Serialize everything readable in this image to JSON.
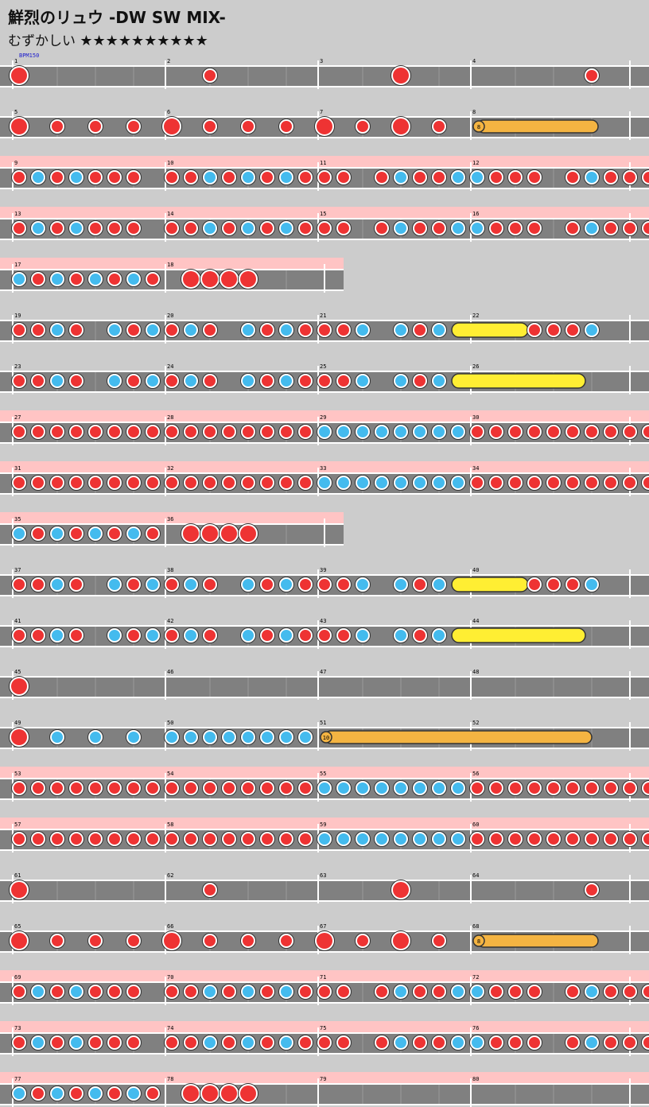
{
  "title": "鮮烈のリュウ -DW SW MIX-",
  "difficulty": {
    "label": "むずかしい",
    "stars": "★★★★★★★★★★",
    "level": 10
  },
  "bpm_label": "BPM150",
  "colors": {
    "don": "#ee3333",
    "ka": "#44bbee",
    "roll": "#f4b442",
    "big_roll": "#ffee33",
    "gogo": "#ffc4c4",
    "lane": "#808080"
  },
  "rows": [
    {
      "bars": [
        "1",
        "2",
        "3",
        "4"
      ],
      "gogo": false,
      "len": 4,
      "notes": "D.........d.........D.........d......."
    },
    {
      "bars": [
        "5",
        "6",
        "7",
        "8"
      ],
      "gogo": false,
      "len": 4,
      "notes": "D.d.d.d.D.d.d.d.D.d.D.d.Y8......."
    },
    {
      "bars": [
        "9",
        "10",
        "11",
        "12"
      ],
      "gogo": true,
      "len": 4,
      "notes": "dkdkddd.ddkdkdkddd.dkddkkddd.dkdddkdkkd"
    },
    {
      "bars": [
        "13",
        "14",
        "15",
        "16"
      ],
      "gogo": true,
      "len": 4,
      "notes": "dkdkddd.ddkdkdkddd.dkddkkddd.dkdddkdkkd"
    },
    {
      "bars": [
        "17",
        "18"
      ],
      "gogo": true,
      "len": 2,
      "notes": "kdkdkdkd.DDDD"
    },
    {
      "bars": [
        "19",
        "20",
        "21",
        "22"
      ],
      "gogo": false,
      "len": 4,
      "notes": "ddkd.kdkdkd.kdkdddk.kdkLLLLdddk"
    },
    {
      "bars": [
        "23",
        "24",
        "25",
        "26"
      ],
      "gogo": false,
      "len": 4,
      "notes": "ddkd.kdkdkd.kdkdddk.kdkLLLLLLL"
    },
    {
      "bars": [
        "27",
        "28",
        "29",
        "30"
      ],
      "gogo": true,
      "len": 4,
      "notes": "ddddddddddddddddkkkkkkkkddddddddddddk"
    },
    {
      "bars": [
        "31",
        "32",
        "33",
        "34"
      ],
      "gogo": true,
      "len": 4,
      "notes": "ddddddddddddddddkkkkkkkkddddddddddddk"
    },
    {
      "bars": [
        "35",
        "36"
      ],
      "gogo": true,
      "len": 2,
      "notes": "kdkdkdkd.DDDD"
    },
    {
      "bars": [
        "37",
        "38",
        "39",
        "40"
      ],
      "gogo": false,
      "len": 4,
      "notes": "ddkd.kdkdkd.kdkdddk.kdkLLLLdddk"
    },
    {
      "bars": [
        "41",
        "42",
        "43",
        "44"
      ],
      "gogo": false,
      "len": 4,
      "notes": "ddkd.kdkdkd.kdkdddk.kdkLLLLLLL"
    },
    {
      "bars": [
        "45",
        "46",
        "47",
        "48"
      ],
      "gogo": false,
      "len": 4,
      "notes": "D"
    },
    {
      "bars": [
        "49",
        "50",
        "51",
        "52"
      ],
      "gogo": false,
      "len": 4,
      "notes": "D.k.k.k.kkkkkkkk10"
    },
    {
      "bars": [
        "53",
        "54",
        "55",
        "56"
      ],
      "gogo": true,
      "len": 4,
      "notes": "ddddddddddddddddkkkkkkkkddddddddddddk"
    },
    {
      "bars": [
        "57",
        "58",
        "59",
        "60"
      ],
      "gogo": true,
      "len": 4,
      "notes": "ddddddddddddddddkkkkkkkkddddddddddddk"
    },
    {
      "bars": [
        "61",
        "62",
        "63",
        "64"
      ],
      "gogo": false,
      "len": 4,
      "notes": "D.........d.........D.........d......."
    },
    {
      "bars": [
        "65",
        "66",
        "67",
        "68"
      ],
      "gogo": false,
      "len": 4,
      "notes": "D.d.d.d.D.d.d.d.D.d.D.d.Y8......."
    },
    {
      "bars": [
        "69",
        "70",
        "71",
        "72"
      ],
      "gogo": true,
      "len": 4,
      "notes": "dkdkddd.ddkdkdkddd.dkddkkddd.dkdddkdkkd"
    },
    {
      "bars": [
        "73",
        "74",
        "75",
        "76"
      ],
      "gogo": true,
      "len": 4,
      "notes": "dkdkddd.ddkdkdkddd.dkddkkddd.dkdddkdkkd"
    },
    {
      "bars": [
        "77",
        "78",
        "79",
        "80"
      ],
      "gogo": true,
      "len": 4,
      "notes": "kdkdkdkd.DDDD"
    }
  ]
}
